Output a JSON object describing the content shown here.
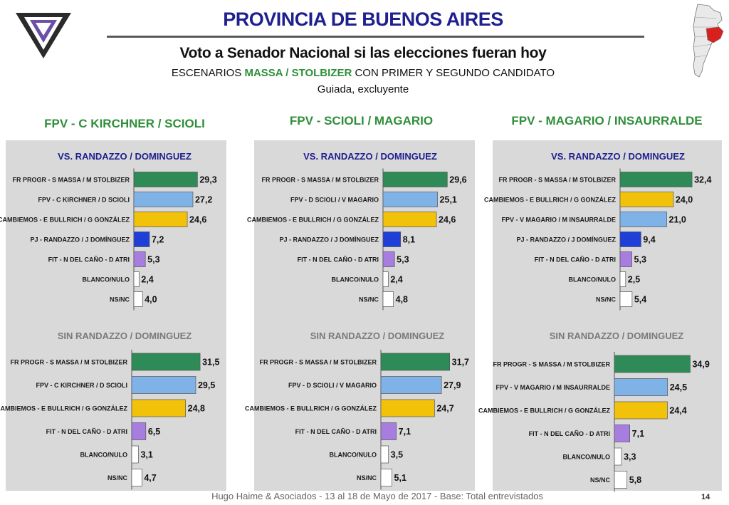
{
  "header": {
    "title": "PROVINCIA DE BUENOS AIRES",
    "subtitle": "Voto a Senador Nacional si las elecciones fueran hoy",
    "scenarios_prefix": "ESCENARIOS",
    "scenarios_highlight": "MASSA / STOLBIZER",
    "scenarios_suffix": "CON PRIMER Y SEGUNDO CANDIDATO",
    "method": "Guiada, excluyente"
  },
  "columns": [
    {
      "title": "FPV - C KIRCHNER / SCIOLI"
    },
    {
      "title": "FPV - SCIOLI / MAGARIO"
    },
    {
      "title": "FPV - MAGARIO / INSAURRALDE"
    }
  ],
  "colors": {
    "massa": "#2e8b57",
    "fpv": "#7fb3e8",
    "cambiemos": "#f2c20a",
    "randazzo": "#1f3fd6",
    "fit": "#a77ee0",
    "blanco": "#ffffff",
    "nsnc": "#ffffff",
    "panel": "#d9d9d9",
    "title": "#1f1f8f",
    "column_title": "#2f8f3a",
    "chart_title": "#1f1f8f",
    "chart_title_sin": "#7a7a7a"
  },
  "chart_data": [
    {
      "type": "bar",
      "orientation": "horizontal",
      "title": "VS. RANDAZZO / DOMINGUEZ",
      "categories": [
        "FR PROGR - S MASSA / M STOLBIZER",
        "FPV - C KIRCHNER / D SCIOLI",
        "CAMBIEMOS - E BULLRICH / G GONZÁLEZ",
        "PJ - RANDAZZO / J DOMÍNGUEZ",
        "FIT - N DEL CAÑO - D ATRI",
        "BLANCO/NULO",
        "NS/NC"
      ],
      "values": [
        29.3,
        27.2,
        24.6,
        7.2,
        5.3,
        2.4,
        4.0
      ],
      "labels": [
        "29,3",
        "27,2",
        "24,6",
        "7,2",
        "5,3",
        "2,4",
        "4,0"
      ],
      "color_keys": [
        "massa",
        "fpv",
        "cambiemos",
        "randazzo",
        "fit",
        "blanco",
        "nsnc"
      ]
    },
    {
      "type": "bar",
      "orientation": "horizontal",
      "title": "VS. RANDAZZO / DOMINGUEZ",
      "categories": [
        "FR PROGR - S MASSA / M STOLBIZER",
        "FPV - D SCIOLI / V MAGARIO",
        "CAMBIEMOS - E BULLRICH / G GONZÁLEZ",
        "PJ - RANDAZZO / J DOMÍNGUEZ",
        "FIT - N DEL CAÑO - D ATRI",
        "BLANCO/NULO",
        "NS/NC"
      ],
      "values": [
        29.6,
        25.1,
        24.6,
        8.1,
        5.3,
        2.4,
        4.8
      ],
      "labels": [
        "29,6",
        "25,1",
        "24,6",
        "8,1",
        "5,3",
        "2,4",
        "4,8"
      ],
      "color_keys": [
        "massa",
        "fpv",
        "cambiemos",
        "randazzo",
        "fit",
        "blanco",
        "nsnc"
      ]
    },
    {
      "type": "bar",
      "orientation": "horizontal",
      "title": "VS. RANDAZZO / DOMINGUEZ",
      "categories": [
        "FR PROGR - S MASSA / M STOLBIZER",
        "CAMBIEMOS - E BULLRICH / G GONZÁLEZ",
        "FPV - V MAGARIO / M INSAURRALDE",
        "PJ - RANDAZZO / J DOMÍNGUEZ",
        "FIT - N DEL CAÑO - D ATRI",
        "BLANCO/NULO",
        "NS/NC"
      ],
      "values": [
        32.4,
        24.0,
        21.0,
        9.4,
        5.3,
        2.5,
        5.4
      ],
      "labels": [
        "32,4",
        "24,0",
        "21,0",
        "9,4",
        "5,3",
        "2,5",
        "5,4"
      ],
      "color_keys": [
        "massa",
        "cambiemos",
        "fpv",
        "randazzo",
        "fit",
        "blanco",
        "nsnc"
      ]
    },
    {
      "type": "bar",
      "orientation": "horizontal",
      "title": "SIN RANDAZZO / DOMINGUEZ",
      "categories": [
        "FR PROGR - S MASSA / M STOLBIZER",
        "FPV - C KIRCHNER / D SCIOLI",
        "CAMBIEMOS - E BULLRICH / G GONZÁLEZ",
        "FIT - N DEL CAÑO - D ATRI",
        "BLANCO/NULO",
        "NS/NC"
      ],
      "values": [
        31.5,
        29.5,
        24.8,
        6.5,
        3.1,
        4.7
      ],
      "labels": [
        "31,5",
        "29,5",
        "24,8",
        "6,5",
        "3,1",
        "4,7"
      ],
      "color_keys": [
        "massa",
        "fpv",
        "cambiemos",
        "fit",
        "blanco",
        "nsnc"
      ]
    },
    {
      "type": "bar",
      "orientation": "horizontal",
      "title": "SIN RANDAZZO / DOMINGUEZ",
      "categories": [
        "FR PROGR - S MASSA / M STOLBIZER",
        "FPV - D SCIOLI / V MAGARIO",
        "CAMBIEMOS - E BULLRICH / G GONZÁLEZ",
        "FIT - N DEL CAÑO - D ATRI",
        "BLANCO/NULO",
        "NS/NC"
      ],
      "values": [
        31.7,
        27.9,
        24.7,
        7.1,
        3.5,
        5.1
      ],
      "labels": [
        "31,7",
        "27,9",
        "24,7",
        "7,1",
        "3,5",
        "5,1"
      ],
      "color_keys": [
        "massa",
        "fpv",
        "cambiemos",
        "fit",
        "blanco",
        "nsnc"
      ]
    },
    {
      "type": "bar",
      "orientation": "horizontal",
      "title": "SIN RANDAZZO / DOMINGUEZ",
      "categories": [
        "FR PROGR - S MASSA / M STOLBIZER",
        "FPV - V MAGARIO / M INSAURRALDE",
        "CAMBIEMOS - E BULLRICH / G GONZÁLEZ",
        "FIT - N DEL CAÑO - D ATRI",
        "BLANCO/NULO",
        "NS/NC"
      ],
      "values": [
        34.9,
        24.5,
        24.4,
        7.1,
        3.3,
        5.8
      ],
      "labels": [
        "34,9",
        "24,5",
        "24,4",
        "7,1",
        "3,3",
        "5,8"
      ],
      "color_keys": [
        "massa",
        "fpv",
        "cambiemos",
        "fit",
        "blanco",
        "nsnc"
      ]
    }
  ],
  "footer": {
    "text": "Hugo Haime & Asociados     -  13 al 18 de Mayo  de 2017    -       Base: Total entrevistados",
    "page": "14"
  }
}
